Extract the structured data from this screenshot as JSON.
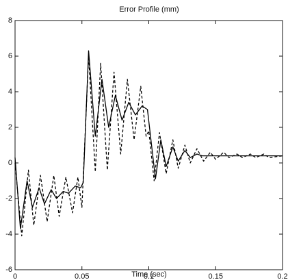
{
  "chart_data": {
    "type": "line",
    "title": "Error Profile (mm)",
    "x_label": "Time (sec)",
    "xlim": [
      0,
      0.2
    ],
    "xticks": [
      0,
      0.05,
      0.1,
      0.15,
      0.2
    ],
    "ylim": [
      -6,
      8
    ],
    "yticks": [
      -6,
      -4,
      -2,
      0,
      2,
      4,
      6,
      8
    ],
    "grid": false,
    "series": [
      {
        "color": "#000000",
        "dash": "solid",
        "x": [
          0,
          0.004,
          0.009,
          0.013,
          0.018,
          0.022,
          0.027,
          0.031,
          0.036,
          0.04,
          0.045,
          0.049,
          0.051,
          0.055,
          0.06,
          0.065,
          0.07,
          0.075,
          0.08,
          0.085,
          0.09,
          0.095,
          0.099,
          0.105,
          0.109,
          0.113,
          0.118,
          0.122,
          0.127,
          0.131,
          0.136,
          0.14,
          0.2
        ],
        "values": [
          0.3,
          -3.7,
          -1,
          -2.5,
          -1.4,
          -2.3,
          -1.5,
          -2,
          -1.6,
          -1.7,
          -1.3,
          -1.4,
          -1.1,
          6.3,
          1.5,
          4.7,
          2,
          3.8,
          2.4,
          3.4,
          2.7,
          3.2,
          3,
          -0.9,
          1.3,
          -0.2,
          0.9,
          0.1,
          0.7,
          0.3,
          0.5,
          0.4,
          0.4
        ]
      },
      {
        "color": "#000000",
        "dash": "dashed",
        "x": [
          0,
          0.005,
          0.01,
          0.014,
          0.019,
          0.024,
          0.029,
          0.033,
          0.038,
          0.043,
          0.047,
          0.05,
          0.055,
          0.06,
          0.064,
          0.069,
          0.074,
          0.079,
          0.084,
          0.089,
          0.094,
          0.098,
          0.1,
          0.104,
          0.108,
          0.113,
          0.118,
          0.122,
          0.127,
          0.131,
          0.136,
          0.141,
          0.146,
          0.15,
          0.156,
          0.16,
          0.166,
          0.17,
          0.176,
          0.18,
          0.186,
          0.19,
          0.2
        ],
        "values": [
          0,
          -4.1,
          -0.4,
          -3.5,
          -0.7,
          -3.3,
          -0.7,
          -3,
          -0.8,
          -2.8,
          -0.8,
          -2.5,
          6,
          -0.5,
          5.6,
          -0.4,
          5.1,
          0.5,
          4.7,
          1.3,
          4.3,
          1.5,
          1.8,
          -1,
          1.7,
          -0.6,
          1.3,
          -0.3,
          1,
          0,
          0.8,
          0.1,
          0.6,
          0.2,
          0.6,
          0.3,
          0.5,
          0.3,
          0.5,
          0.3,
          0.5,
          0.3,
          0.4
        ]
      }
    ]
  }
}
